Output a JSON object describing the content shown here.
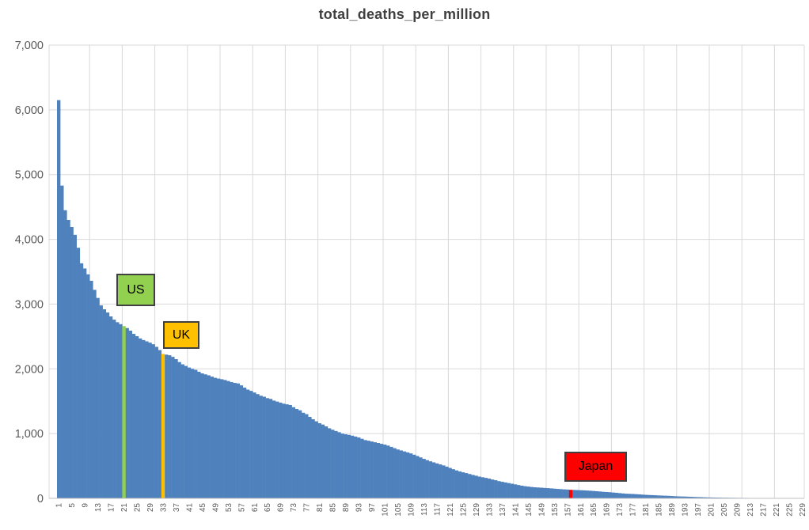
{
  "title": "total_deaths_per_million",
  "chart_data": {
    "type": "bar",
    "title": "total_deaths_per_million",
    "xlabel": "",
    "ylabel": "",
    "ylim": [
      0,
      7000
    ],
    "y_tick_values": [
      0,
      1000,
      2000,
      3000,
      4000,
      5000,
      6000,
      7000
    ],
    "y_tick_labels": [
      "0",
      "1,000",
      "2,000",
      "3,000",
      "4,000",
      "5,000",
      "6,000",
      "7,000"
    ],
    "x_tick_labels": [
      1,
      5,
      9,
      13,
      17,
      21,
      25,
      29,
      33,
      37,
      41,
      45,
      49,
      53,
      57,
      61,
      65,
      69,
      73,
      77,
      81,
      85,
      89,
      93,
      97,
      101,
      105,
      109,
      113,
      117,
      121,
      125,
      129,
      133,
      137,
      141,
      145,
      149,
      153,
      157,
      161,
      165,
      169,
      173,
      177,
      181,
      185,
      189,
      193,
      197,
      201,
      205,
      209,
      213,
      217,
      221,
      225,
      229
    ],
    "n_categories": 229,
    "grid": true,
    "legend": "none",
    "bar_color": "#4F81BD",
    "gridline_color": "#D9D9D9",
    "axis_line_color": "#BFBFBF",
    "tick_text_color": "#595959",
    "title_color": "#404040",
    "values": [
      6150,
      4830,
      4450,
      4300,
      4190,
      4070,
      3870,
      3630,
      3550,
      3460,
      3360,
      3220,
      3095,
      2980,
      2920,
      2870,
      2810,
      2760,
      2720,
      2690,
      2660,
      2630,
      2590,
      2540,
      2505,
      2470,
      2445,
      2425,
      2405,
      2380,
      2340,
      2290,
      2230,
      2220,
      2210,
      2185,
      2150,
      2105,
      2070,
      2045,
      2020,
      2000,
      1985,
      1955,
      1930,
      1915,
      1900,
      1880,
      1862,
      1850,
      1840,
      1828,
      1812,
      1795,
      1783,
      1775,
      1745,
      1710,
      1680,
      1660,
      1635,
      1610,
      1585,
      1570,
      1548,
      1536,
      1510,
      1495,
      1478,
      1462,
      1452,
      1442,
      1408,
      1380,
      1360,
      1322,
      1300,
      1258,
      1222,
      1190,
      1160,
      1140,
      1112,
      1082,
      1060,
      1040,
      1022,
      1000,
      990,
      980,
      968,
      955,
      940,
      920,
      900,
      890,
      878,
      866,
      855,
      842,
      830,
      815,
      795,
      775,
      755,
      740,
      725,
      710,
      694,
      674,
      654,
      632,
      610,
      590,
      572,
      556,
      540,
      524,
      509,
      490,
      470,
      450,
      432,
      416,
      402,
      390,
      376,
      362,
      350,
      336,
      326,
      316,
      306,
      291,
      280,
      266,
      256,
      246,
      236,
      226,
      216,
      206,
      196,
      188,
      182,
      176,
      171,
      168,
      165,
      161,
      158,
      154,
      150,
      146,
      142,
      139,
      136,
      132,
      130,
      128,
      126,
      124,
      121,
      118,
      114,
      110,
      106,
      101,
      98,
      95,
      90,
      86,
      81,
      76,
      72,
      70,
      68,
      65,
      62,
      58,
      55,
      52,
      50,
      48,
      45,
      43,
      41,
      39,
      36,
      33,
      31,
      29,
      28,
      26,
      24,
      22,
      20,
      19,
      17,
      15,
      14,
      13,
      12,
      11,
      10,
      10,
      9,
      9,
      8,
      8,
      7,
      7,
      6,
      5,
      5,
      4,
      0,
      0,
      0,
      0,
      0,
      0,
      0,
      0,
      0,
      0,
      0,
      0,
      0
    ],
    "highlights": [
      {
        "rank": 21,
        "label": "US",
        "color": "#92D050"
      },
      {
        "rank": 33,
        "label": "UK",
        "color": "#FFC000"
      },
      {
        "rank": 158,
        "label": "Japan",
        "color": "#FF0000"
      }
    ]
  }
}
